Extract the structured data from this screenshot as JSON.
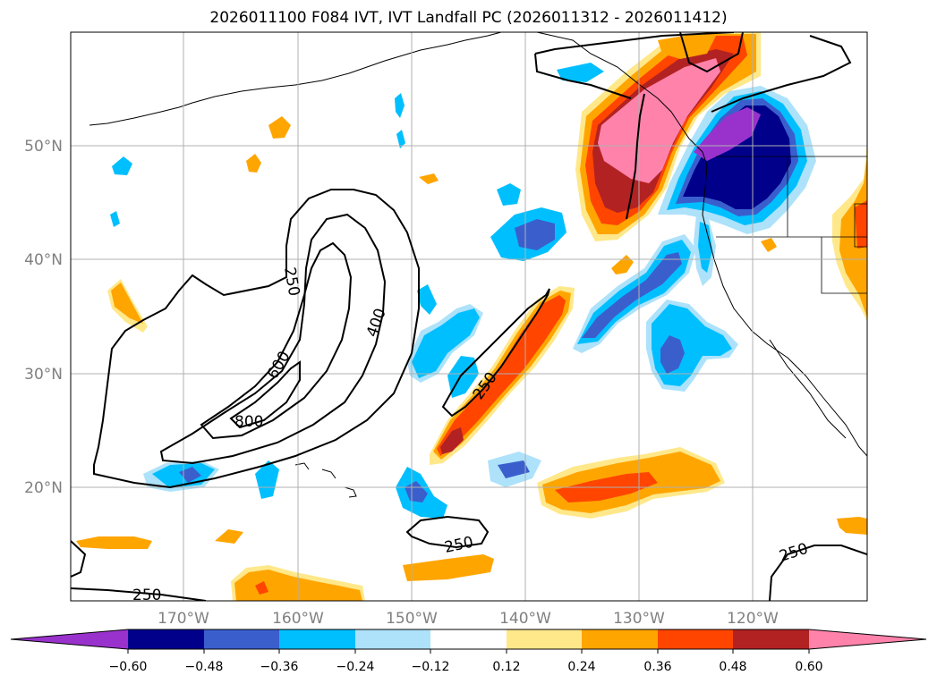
{
  "title": "2026011100 F084 IVT, IVT Landfall PC (2026011312 - 2026011412)",
  "lat_labels": [
    "50°N",
    "40°N",
    "30°N",
    "20°N"
  ],
  "lon_labels": [
    "170°W",
    "160°W",
    "150°W",
    "140°W",
    "130°W",
    "120°W"
  ],
  "colorbar": {
    "ticks": [
      "−0.60",
      "−0.48",
      "−0.36",
      "−0.24",
      "−0.12",
      "0.12",
      "0.24",
      "0.36",
      "0.48",
      "0.60"
    ],
    "colors": [
      "#9932CC",
      "#00008B",
      "#3A5FCD",
      "#00BFFF",
      "#ADE2FA",
      "#FFFFFF",
      "#FFE88A",
      "#FFA500",
      "#FF4500",
      "#B22222",
      "#FF82AB"
    ]
  },
  "contour_labels": {
    "c250_a": "250",
    "c400": "400",
    "c600": "600",
    "c800": "800",
    "c250_b": "250",
    "c250_c": "250",
    "c250_d": "250",
    "c250_e": "250"
  }
}
